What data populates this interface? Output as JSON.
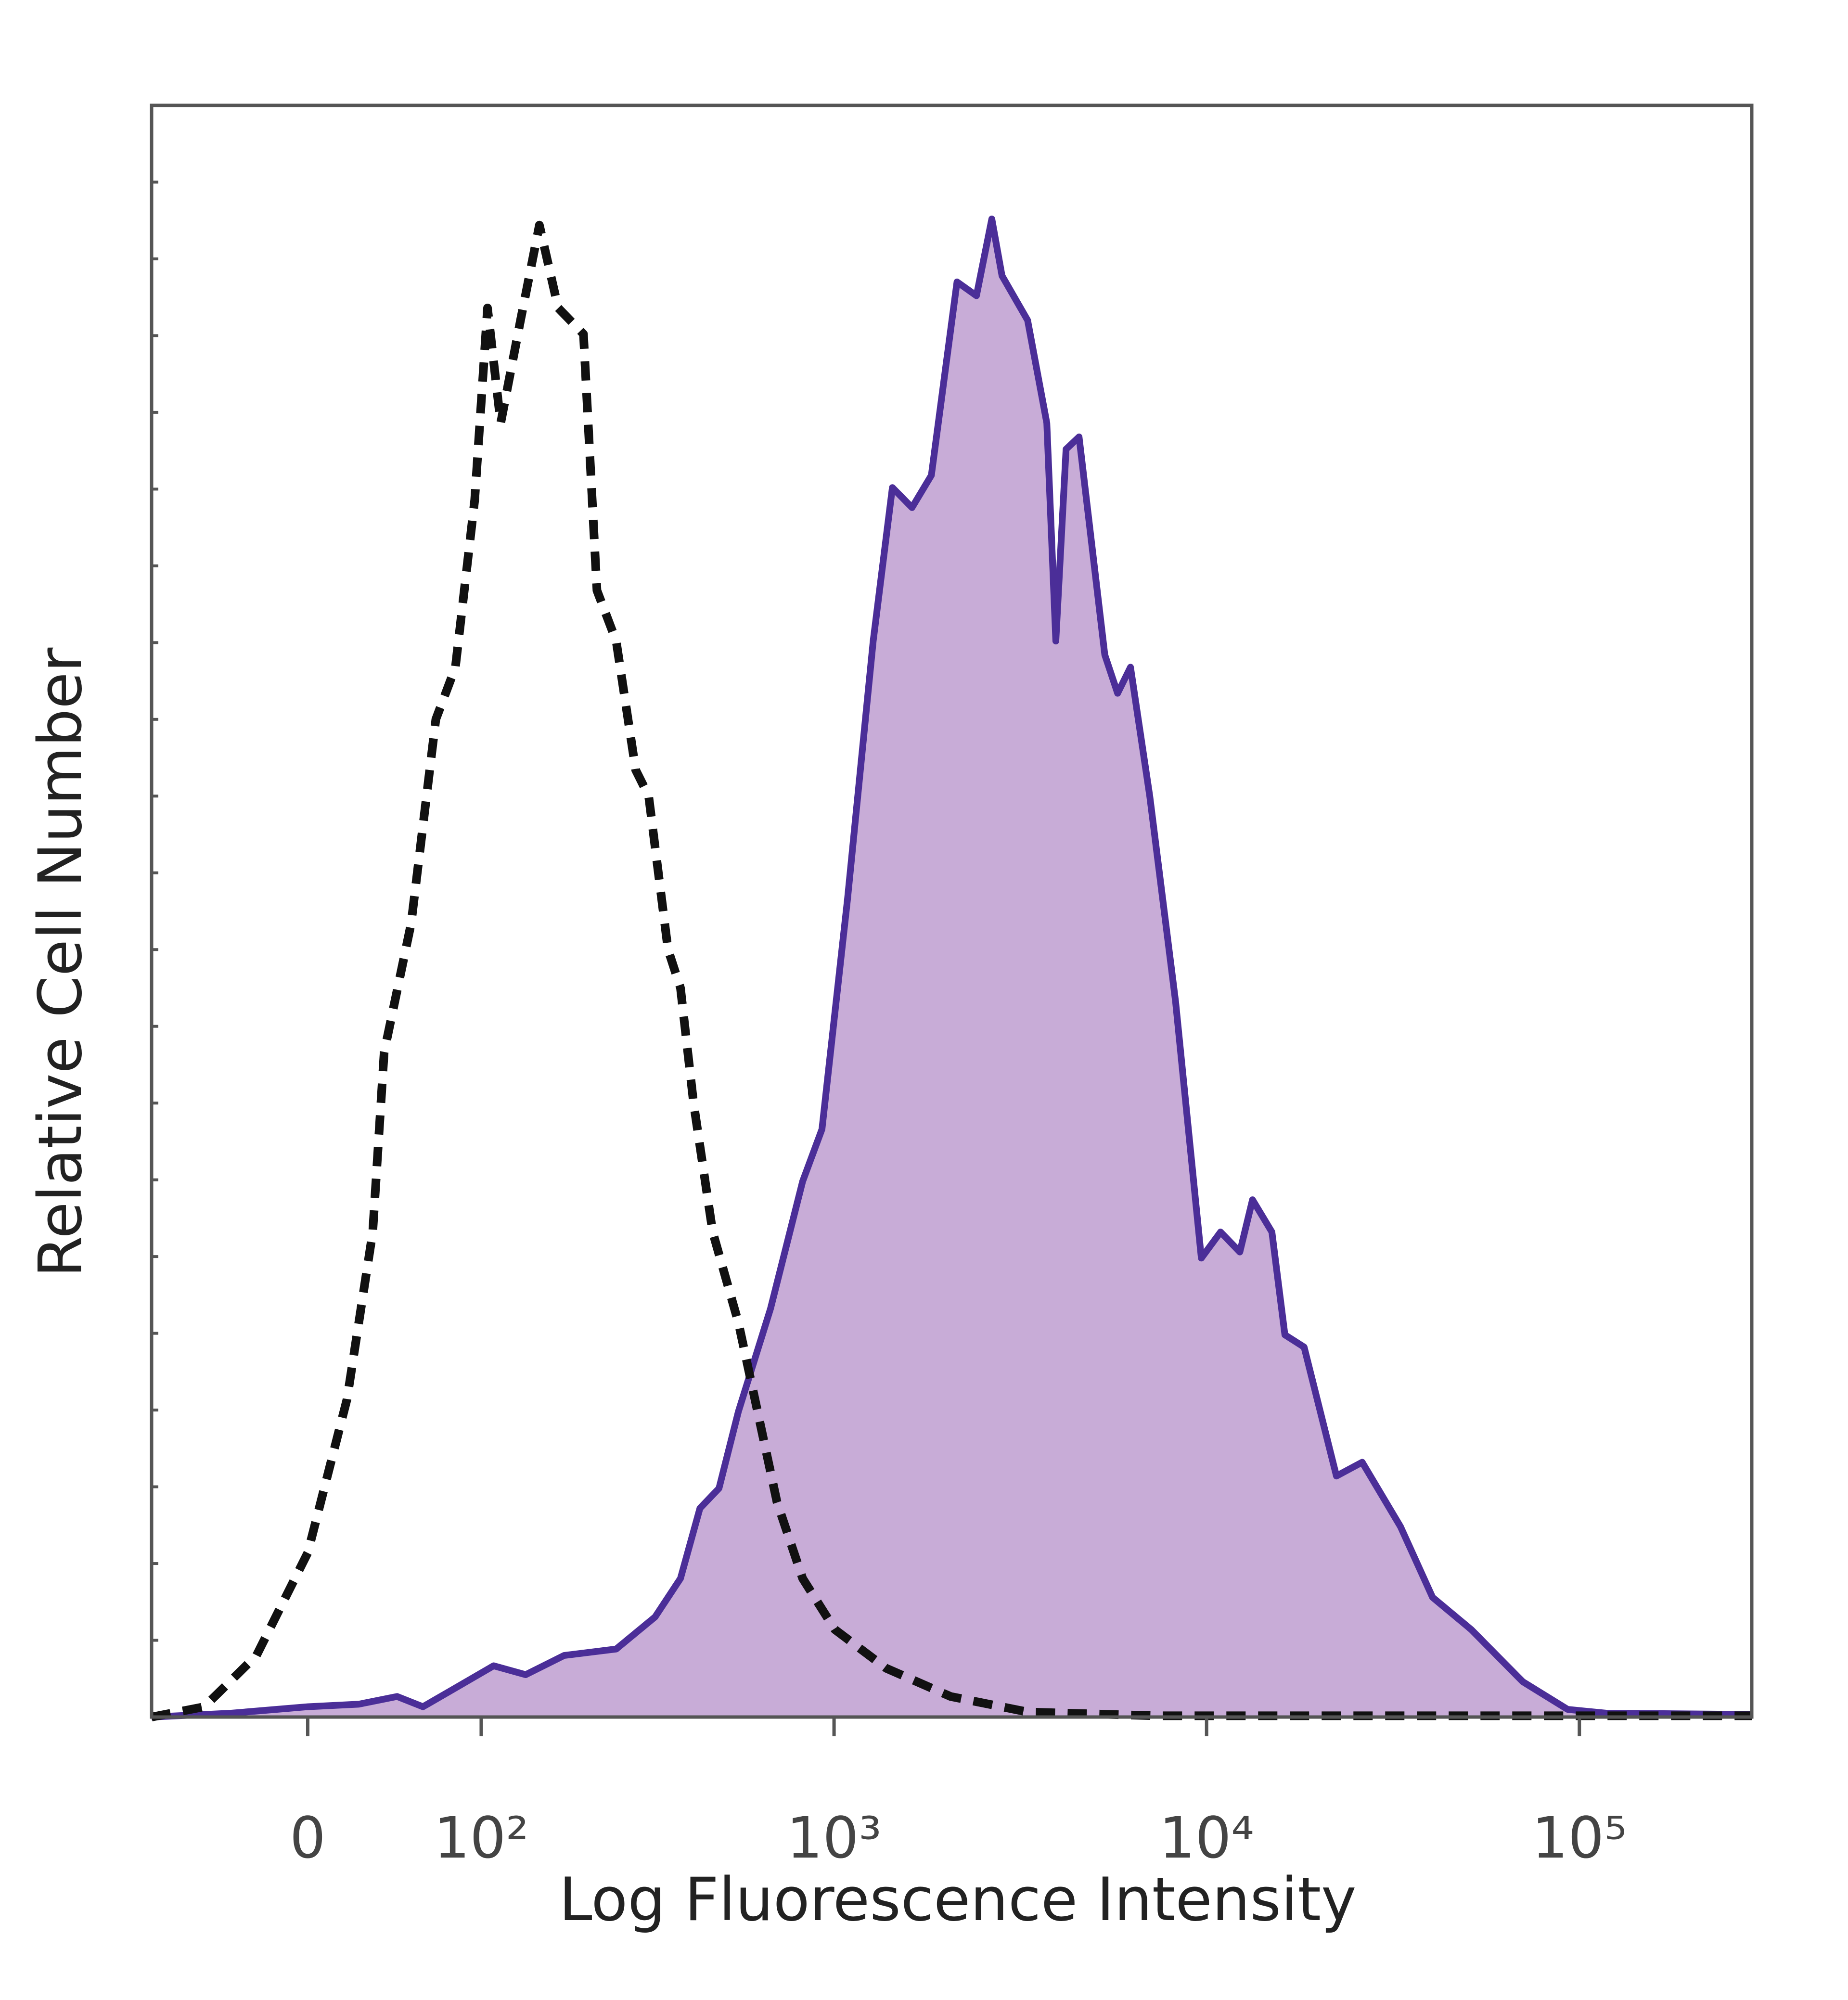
{
  "chart_data": {
    "type": "histogram-overlay",
    "x_label": "Log Fluorescence Intensity",
    "y_label": "Relative Cell Number",
    "xscale": "arcsinh",
    "xscale_cofactor": 38.8,
    "xlim": [
      -87,
      290000
    ],
    "xticks": [
      {
        "value": 0,
        "label": "0"
      },
      {
        "value": 100,
        "label": "10²"
      },
      {
        "value": 1000,
        "label": "10³"
      },
      {
        "value": 10000,
        "label": "10⁴"
      },
      {
        "value": 100000,
        "label": "10⁵"
      }
    ],
    "ylim": [
      0,
      105
    ],
    "yticks": [
      0,
      5,
      10,
      15,
      20,
      25,
      30,
      35,
      40,
      45,
      50,
      55,
      60,
      65,
      70,
      75,
      80,
      85,
      90,
      95,
      100
    ],
    "series": [
      {
        "color": "#4b2e98",
        "fill": "#c8acd7",
        "dashed": false,
        "x": [
          -87,
          -38,
          0,
          25,
          45,
          60,
          77,
          110,
          139,
          181,
          255,
          327,
          384,
          434,
          489,
          552,
          674,
          823,
          928,
          1087,
          1274,
          1435,
          1620,
          1826,
          2140,
          2413,
          2653,
          2826,
          3310,
          3727,
          3940,
          4198,
          4548,
          5332,
          5772,
          6250,
          7040,
          8257,
          9680,
          10900,
          12280,
          13280,
          14970,
          16220,
          18270,
          22300,
          26140,
          33130,
          40380,
          51270,
          70500,
          92990,
          118000,
          290000
        ],
        "values": [
          0,
          0.25,
          0.67,
          0.84,
          1.34,
          0.67,
          1.67,
          3.34,
          2.76,
          4.01,
          4.43,
          6.52,
          9.03,
          13.6,
          14.9,
          19.9,
          26.6,
          34.9,
          38.3,
          53.3,
          70.1,
          80.1,
          78.8,
          80.9,
          93.5,
          92.6,
          97.6,
          93.9,
          91.0,
          84.3,
          70.1,
          82.6,
          83.4,
          69.2,
          66.7,
          68.4,
          60.0,
          46.6,
          29.9,
          31.6,
          30.3,
          33.7,
          31.6,
          24.9,
          24.1,
          15.7,
          16.6,
          12.4,
          7.8,
          5.7,
          2.3,
          0.5,
          0.25,
          0.17
        ]
      },
      {
        "color": "#111111",
        "fill": "none",
        "dashed": true,
        "x": [
          -87,
          -53,
          -25,
          0,
          19,
          32,
          38,
          53,
          68,
          81,
          95,
          105,
          116,
          134,
          153,
          174,
          206,
          225,
          255,
          289,
          314,
          355,
          384,
          417,
          470,
          552,
          622,
          702,
          823,
          1005,
          1381,
          2056,
          3310,
          7318,
          290000
        ],
        "values": [
          0,
          0.67,
          4.01,
          10.7,
          20.7,
          31.6,
          43.3,
          51.7,
          65.0,
          68.4,
          79.3,
          91.8,
          84.3,
          91.0,
          97.2,
          91.8,
          90.1,
          73.4,
          70.1,
          61.7,
          60.0,
          50.0,
          47.5,
          40.0,
          31.6,
          25.7,
          19.9,
          14.0,
          9.03,
          5.7,
          3.18,
          1.34,
          0.33,
          0.08,
          0.08
        ]
      }
    ]
  }
}
